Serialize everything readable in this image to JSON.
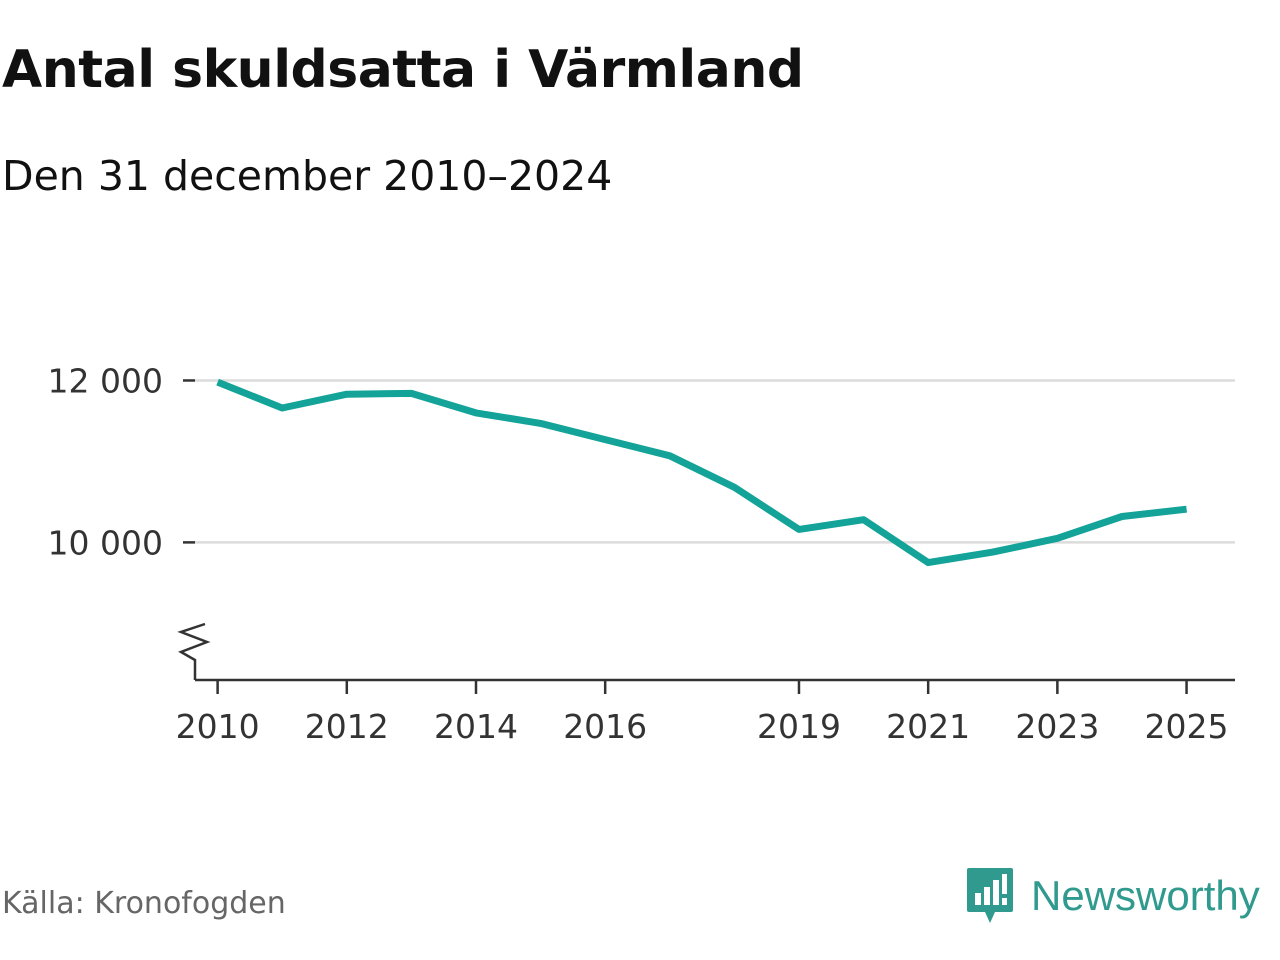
{
  "header": {
    "title": "Antal skuldsatta i Värmland",
    "subtitle": "Den 31 december 2010–2024"
  },
  "footer": {
    "source": "Källa: Kronofogden",
    "brand": "Newsworthy",
    "brand_icon": "bar-chart-badge-icon"
  },
  "colors": {
    "line": "#13a398",
    "grid": "#dcdcdc",
    "axis": "#333333",
    "brand": "#2f9a8d"
  },
  "chart_data": {
    "type": "line",
    "title": "Antal skuldsatta i Värmland",
    "subtitle": "Den 31 december 2010–2024",
    "xlabel": "",
    "ylabel": "",
    "xlim": [
      2009.65,
      2025.75
    ],
    "ylim": [
      8300,
      12500
    ],
    "x_ticks": [
      2010,
      2012,
      2014,
      2016,
      2019,
      2021,
      2023,
      2025
    ],
    "x_tick_labels": [
      "2010",
      "2012",
      "2014",
      "2016",
      "2019",
      "2021",
      "2023",
      "2025"
    ],
    "y_ticks": [
      10000,
      12000
    ],
    "y_tick_labels": [
      "10 000",
      "12 000"
    ],
    "y_axis_break": true,
    "grid": "horizontal",
    "series": [
      {
        "x": [
          2010,
          2011,
          2012,
          2013,
          2014,
          2015,
          2016,
          2017,
          2018,
          2019,
          2020,
          2021,
          2022,
          2023,
          2024,
          2025
        ],
        "values": [
          11980,
          11660,
          11830,
          11840,
          11600,
          11470,
          11270,
          11070,
          10680,
          10160,
          10280,
          9750,
          9880,
          10050,
          10320,
          10410
        ]
      }
    ]
  }
}
